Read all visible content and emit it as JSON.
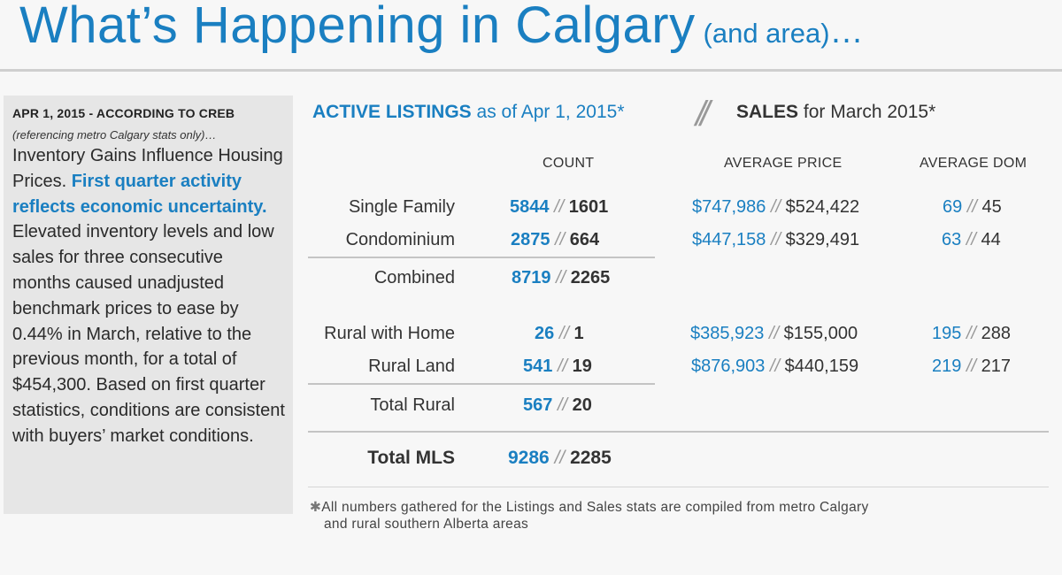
{
  "header": {
    "title": "What’s Happening in Calgary",
    "title_suffix": "(and area)",
    "title_dots": "…"
  },
  "sidebar": {
    "date_line": "APR 1, 2015 - ACCORDING TO CREB",
    "reference_note": "(referencing metro Calgary stats only)…",
    "headline": "Inventory Gains Influence Housing Prices.",
    "highlight": "First quarter activity reflects economic uncertainty.",
    "body": "Elevated inventory levels and low sales for three consecutive months caused unadjusted benchmark prices to ease by 0.44% in March, relative to the previous month, for a total of $454,300. Based on first quarter statistics, conditions are consistent with buyers’ market conditions."
  },
  "table_header": {
    "active_bold": "ACTIVE LISTINGS",
    "active_rest": "as of Apr 1, 2015*",
    "separator": "//",
    "sales_bold": "SALES",
    "sales_rest": "for March 2015*"
  },
  "columns": {
    "count": "COUNT",
    "avg_price": "AVERAGE PRICE",
    "avg_dom": "AVERAGE DOM"
  },
  "divider": "//",
  "rows": [
    {
      "label": "Single Family",
      "count_active": "5844",
      "count_sales": "1601",
      "price_active": "$747,986",
      "price_sales": "$524,422",
      "dom_active": "69",
      "dom_sales": "45"
    },
    {
      "label": "Condominium",
      "count_active": "2875",
      "count_sales": "664",
      "price_active": "$447,158",
      "price_sales": "$329,491",
      "dom_active": "63",
      "dom_sales": "44"
    },
    {
      "label": "Combined",
      "count_active": "8719",
      "count_sales": "2265"
    },
    {
      "label": "Rural with Home",
      "count_active": "26",
      "count_sales": "1",
      "price_active": "$385,923",
      "price_sales": "$155,000",
      "dom_active": "195",
      "dom_sales": "288"
    },
    {
      "label": "Rural Land",
      "count_active": "541",
      "count_sales": "19",
      "price_active": "$876,903",
      "price_sales": "$440,159",
      "dom_active": "219",
      "dom_sales": "217"
    },
    {
      "label": "Total Rural",
      "count_active": "567",
      "count_sales": "20"
    },
    {
      "label": "Total MLS",
      "count_active": "9286",
      "count_sales": "2285"
    }
  ],
  "footnote": {
    "marker": "✱",
    "line1": "All numbers gathered for the Listings and Sales stats are compiled from metro Calgary",
    "line2": "and rural southern Alberta areas"
  }
}
